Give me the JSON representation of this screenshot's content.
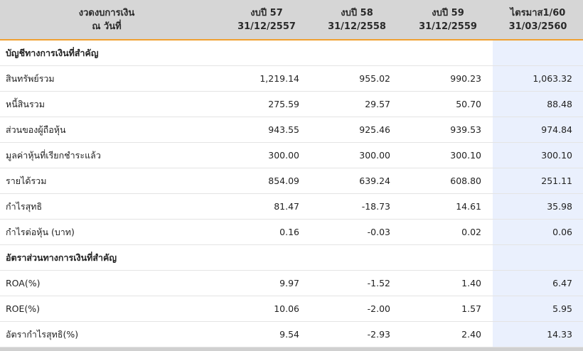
{
  "header": {
    "col0": {
      "line1": "งวดงบการเงิน",
      "line2": "ณ วันที่"
    },
    "col1": {
      "line1": "งบปี 57",
      "line2": "31/12/2557"
    },
    "col2": {
      "line1": "งบปี 58",
      "line2": "31/12/2558"
    },
    "col3": {
      "line1": "งบปี 59",
      "line2": "31/12/2559"
    },
    "col4": {
      "line1": "ไตรมาส1/60",
      "line2": "31/03/2560"
    }
  },
  "rows": [
    {
      "label": "บัญชีทางการเงินที่สำคัญ",
      "section": true,
      "values": [
        "",
        "",
        "",
        ""
      ]
    },
    {
      "label": "สินทรัพย์รวม",
      "values": [
        "1,219.14",
        "955.02",
        "990.23",
        "1,063.32"
      ]
    },
    {
      "label": "หนี้สินรวม",
      "values": [
        "275.59",
        "29.57",
        "50.70",
        "88.48"
      ]
    },
    {
      "label": "ส่วนของผู้ถือหุ้น",
      "values": [
        "943.55",
        "925.46",
        "939.53",
        "974.84"
      ]
    },
    {
      "label": "มูลค่าหุ้นที่เรียกชำระแล้ว",
      "values": [
        "300.00",
        "300.00",
        "300.10",
        "300.10"
      ]
    },
    {
      "label": "รายได้รวม",
      "values": [
        "854.09",
        "639.24",
        "608.80",
        "251.11"
      ]
    },
    {
      "label": "กำไรสุทธิ",
      "values": [
        "81.47",
        "-18.73",
        "14.61",
        "35.98"
      ]
    },
    {
      "label": "กำไรต่อหุ้น (บาท)",
      "values": [
        "0.16",
        "-0.03",
        "0.02",
        "0.06"
      ]
    },
    {
      "label": "อัตราส่วนทางการเงินที่สำคัญ",
      "section": true,
      "values": [
        "",
        "",
        "",
        ""
      ]
    },
    {
      "label": "ROA(%)",
      "values": [
        "9.97",
        "-1.52",
        "1.40",
        "6.47"
      ]
    },
    {
      "label": "ROE(%)",
      "values": [
        "10.06",
        "-2.00",
        "1.57",
        "5.95"
      ]
    },
    {
      "label": "อัตรากำไรสุทธิ(%)",
      "values": [
        "9.54",
        "-2.93",
        "2.40",
        "14.33"
      ]
    }
  ],
  "colors": {
    "header_bg": "#d6d6d6",
    "header_border": "#f0a030",
    "highlight_col": "#eaf0fd"
  }
}
